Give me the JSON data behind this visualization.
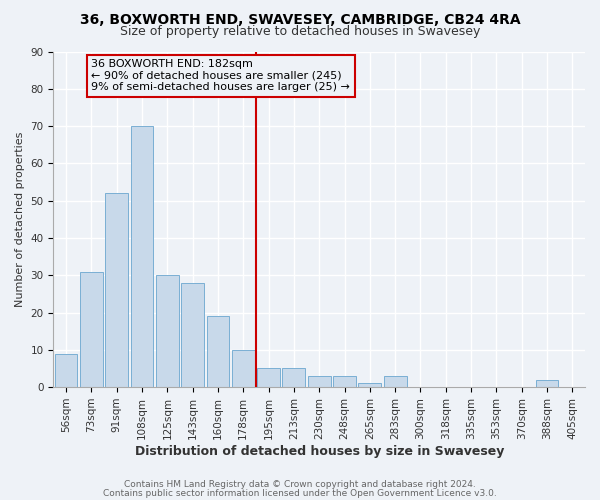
{
  "title": "36, BOXWORTH END, SWAVESEY, CAMBRIDGE, CB24 4RA",
  "subtitle": "Size of property relative to detached houses in Swavesey",
  "xlabel": "Distribution of detached houses by size in Swavesey",
  "ylabel": "Number of detached properties",
  "bar_labels": [
    "56sqm",
    "73sqm",
    "91sqm",
    "108sqm",
    "125sqm",
    "143sqm",
    "160sqm",
    "178sqm",
    "195sqm",
    "213sqm",
    "230sqm",
    "248sqm",
    "265sqm",
    "283sqm",
    "300sqm",
    "318sqm",
    "335sqm",
    "353sqm",
    "370sqm",
    "388sqm",
    "405sqm"
  ],
  "bar_values": [
    9,
    31,
    52,
    70,
    30,
    28,
    19,
    10,
    5,
    5,
    3,
    3,
    1,
    3,
    0,
    0,
    0,
    0,
    0,
    2,
    0
  ],
  "bar_color": "#c8d9ea",
  "bar_edgecolor": "#7aafd4",
  "background_color": "#eef2f7",
  "vline_x": 7.5,
  "vline_color": "#cc0000",
  "annotation_line1": "36 BOXWORTH END: 182sqm",
  "annotation_line2": "← 90% of detached houses are smaller (245)",
  "annotation_line3": "9% of semi-detached houses are larger (25) →",
  "annotation_box_edgecolor": "#cc0000",
  "ylim": [
    0,
    90
  ],
  "yticks": [
    0,
    10,
    20,
    30,
    40,
    50,
    60,
    70,
    80,
    90
  ],
  "footer1": "Contains HM Land Registry data © Crown copyright and database right 2024.",
  "footer2": "Contains public sector information licensed under the Open Government Licence v3.0.",
  "title_fontsize": 10,
  "subtitle_fontsize": 9,
  "xlabel_fontsize": 9,
  "ylabel_fontsize": 8,
  "tick_fontsize": 7.5,
  "annotation_fontsize": 8,
  "footer_fontsize": 6.5,
  "grid_color": "#ffffff"
}
